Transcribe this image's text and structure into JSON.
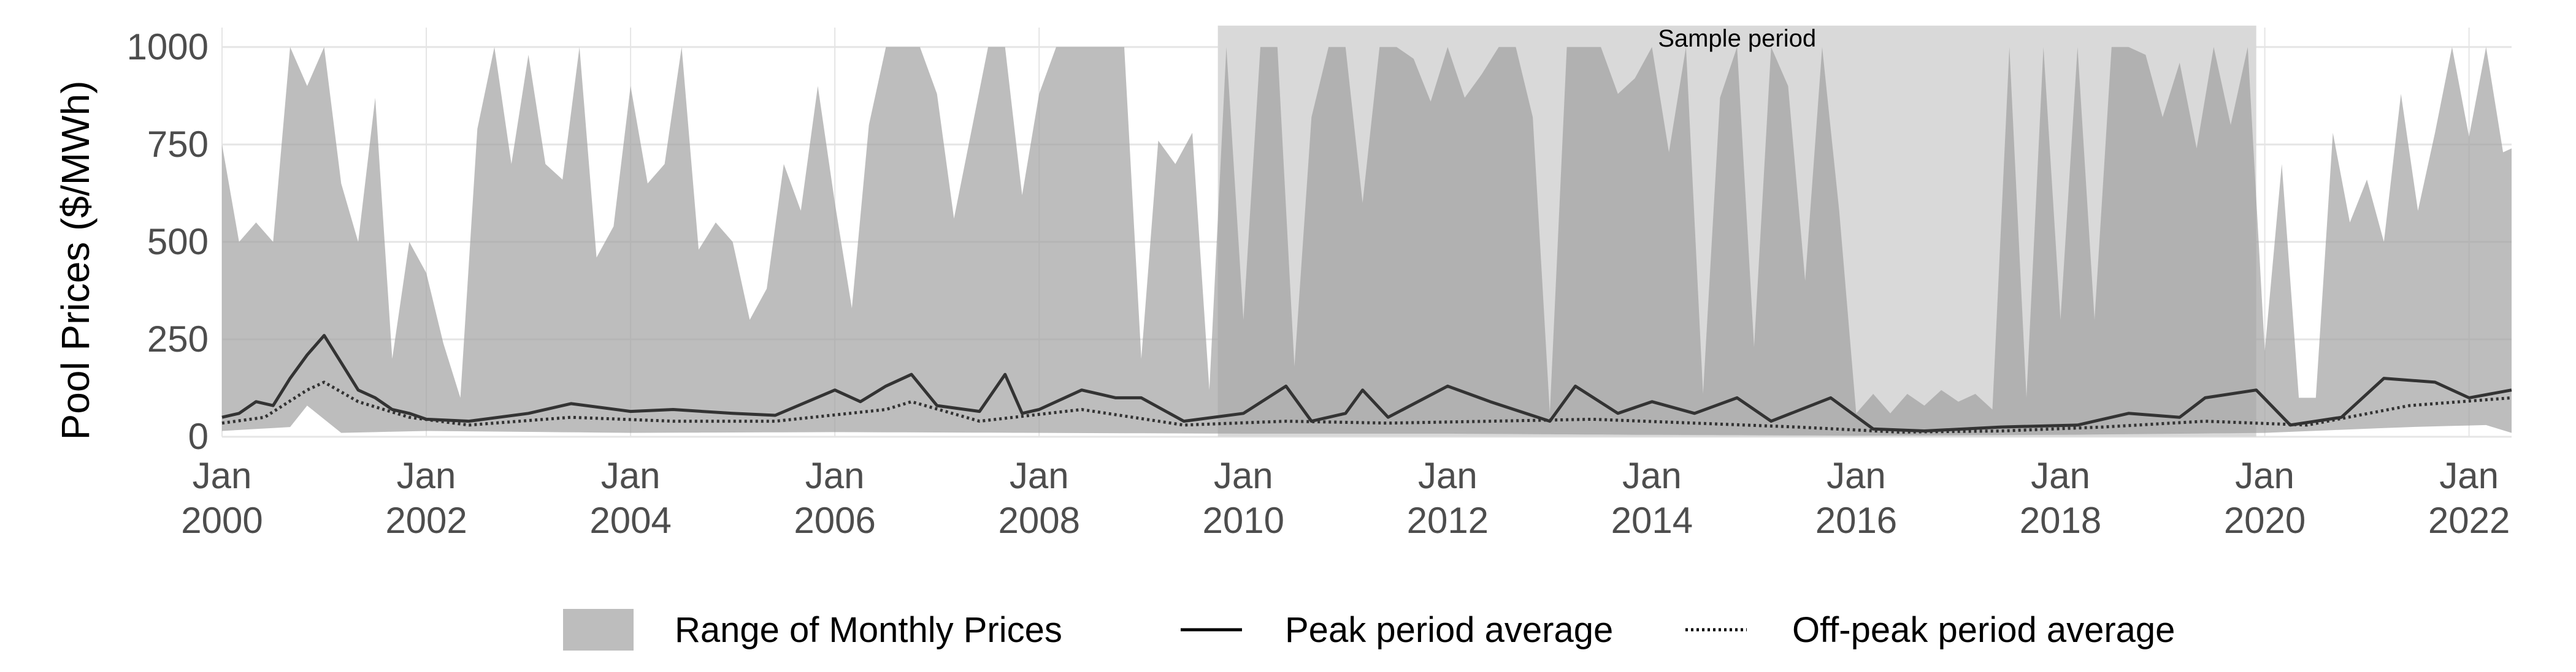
{
  "chart_data": {
    "type": "area",
    "title": "",
    "xlabel": "",
    "ylabel": "Pool Prices ($/MWh)",
    "ylim": [
      0,
      1050
    ],
    "yticks": [
      0,
      250,
      500,
      750,
      1000
    ],
    "xlim": [
      "2000-01",
      "2022-06"
    ],
    "xticks": [
      {
        "date": "2000-01",
        "month": "Jan",
        "year": "2000"
      },
      {
        "date": "2002-01",
        "month": "Jan",
        "year": "2002"
      },
      {
        "date": "2004-01",
        "month": "Jan",
        "year": "2004"
      },
      {
        "date": "2006-01",
        "month": "Jan",
        "year": "2006"
      },
      {
        "date": "2008-01",
        "month": "Jan",
        "year": "2008"
      },
      {
        "date": "2010-01",
        "month": "Jan",
        "year": "2010"
      },
      {
        "date": "2012-01",
        "month": "Jan",
        "year": "2012"
      },
      {
        "date": "2014-01",
        "month": "Jan",
        "year": "2014"
      },
      {
        "date": "2016-01",
        "month": "Jan",
        "year": "2016"
      },
      {
        "date": "2018-01",
        "month": "Jan",
        "year": "2018"
      },
      {
        "date": "2020-01",
        "month": "Jan",
        "year": "2020"
      },
      {
        "date": "2022-01",
        "month": "Jan",
        "year": "2022"
      }
    ],
    "grid": true,
    "legend_position": "bottom",
    "annotation": {
      "label": "Sample period",
      "start": "2009-10",
      "end": "2019-12",
      "color": "#d9d9d9"
    },
    "colors": {
      "range_fill": "#9e9e9e",
      "peak_line": "#333333",
      "offpeak_line": "#333333",
      "grid": "#e5e5e5"
    },
    "range_max_key": [
      [
        "2000-01",
        750
      ],
      [
        "2000-03",
        500
      ],
      [
        "2000-05",
        550
      ],
      [
        "2000-07",
        500
      ],
      [
        "2000-09",
        1000
      ],
      [
        "2000-11",
        900
      ],
      [
        "2001-01",
        1000
      ],
      [
        "2001-03",
        650
      ],
      [
        "2001-05",
        500
      ],
      [
        "2001-07",
        870
      ],
      [
        "2001-09",
        200
      ],
      [
        "2001-11",
        500
      ],
      [
        "2002-01",
        420
      ],
      [
        "2002-03",
        240
      ],
      [
        "2002-05",
        100
      ],
      [
        "2002-07",
        790
      ],
      [
        "2002-09",
        1000
      ],
      [
        "2002-11",
        700
      ],
      [
        "2003-01",
        980
      ],
      [
        "2003-03",
        700
      ],
      [
        "2003-05",
        660
      ],
      [
        "2003-07",
        1000
      ],
      [
        "2003-09",
        460
      ],
      [
        "2003-11",
        540
      ],
      [
        "2004-01",
        900
      ],
      [
        "2004-03",
        650
      ],
      [
        "2004-05",
        700
      ],
      [
        "2004-07",
        1000
      ],
      [
        "2004-09",
        480
      ],
      [
        "2004-11",
        550
      ],
      [
        "2005-01",
        500
      ],
      [
        "2005-03",
        300
      ],
      [
        "2005-05",
        380
      ],
      [
        "2005-07",
        700
      ],
      [
        "2005-09",
        580
      ],
      [
        "2005-11",
        900
      ],
      [
        "2006-01",
        600
      ],
      [
        "2006-03",
        330
      ],
      [
        "2006-05",
        800
      ],
      [
        "2006-07",
        1000
      ],
      [
        "2006-09",
        1000
      ],
      [
        "2006-11",
        1000
      ],
      [
        "2007-01",
        880
      ],
      [
        "2007-03",
        560
      ],
      [
        "2007-05",
        780
      ],
      [
        "2007-07",
        1000
      ],
      [
        "2007-09",
        1000
      ],
      [
        "2007-11",
        620
      ],
      [
        "2008-01",
        880
      ],
      [
        "2008-03",
        1000
      ],
      [
        "2008-05",
        1000
      ],
      [
        "2008-07",
        1000
      ],
      [
        "2008-09",
        1000
      ],
      [
        "2008-11",
        1000
      ],
      [
        "2009-01",
        200
      ],
      [
        "2009-03",
        760
      ],
      [
        "2009-05",
        700
      ],
      [
        "2009-07",
        780
      ],
      [
        "2009-09",
        120
      ],
      [
        "2009-11",
        1000
      ],
      [
        "2010-01",
        300
      ],
      [
        "2010-03",
        1000
      ],
      [
        "2010-05",
        1000
      ],
      [
        "2010-07",
        180
      ],
      [
        "2010-09",
        820
      ],
      [
        "2010-11",
        1000
      ],
      [
        "2011-01",
        1000
      ],
      [
        "2011-03",
        600
      ],
      [
        "2011-05",
        1000
      ],
      [
        "2011-07",
        1000
      ],
      [
        "2011-09",
        970
      ],
      [
        "2011-11",
        860
      ],
      [
        "2012-01",
        1000
      ],
      [
        "2012-03",
        870
      ],
      [
        "2012-05",
        930
      ],
      [
        "2012-07",
        1000
      ],
      [
        "2012-09",
        1000
      ],
      [
        "2012-11",
        820
      ],
      [
        "2013-01",
        60
      ],
      [
        "2013-03",
        1000
      ],
      [
        "2013-05",
        1000
      ],
      [
        "2013-07",
        1000
      ],
      [
        "2013-09",
        880
      ],
      [
        "2013-11",
        920
      ],
      [
        "2014-01",
        1000
      ],
      [
        "2014-03",
        730
      ],
      [
        "2014-05",
        1000
      ],
      [
        "2014-07",
        110
      ],
      [
        "2014-09",
        870
      ],
      [
        "2014-11",
        1000
      ],
      [
        "2015-01",
        230
      ],
      [
        "2015-03",
        1000
      ],
      [
        "2015-05",
        900
      ],
      [
        "2015-07",
        400
      ],
      [
        "2015-09",
        1000
      ],
      [
        "2015-11",
        580
      ],
      [
        "2016-01",
        60
      ],
      [
        "2016-03",
        110
      ],
      [
        "2016-05",
        60
      ],
      [
        "2016-07",
        110
      ],
      [
        "2016-09",
        80
      ],
      [
        "2016-11",
        120
      ],
      [
        "2017-01",
        90
      ],
      [
        "2017-03",
        110
      ],
      [
        "2017-05",
        70
      ],
      [
        "2017-07",
        1000
      ],
      [
        "2017-09",
        100
      ],
      [
        "2017-11",
        1000
      ],
      [
        "2018-01",
        300
      ],
      [
        "2018-03",
        1000
      ],
      [
        "2018-05",
        300
      ],
      [
        "2018-07",
        1000
      ],
      [
        "2018-09",
        1000
      ],
      [
        "2018-11",
        980
      ],
      [
        "2019-01",
        820
      ],
      [
        "2019-03",
        960
      ],
      [
        "2019-05",
        740
      ],
      [
        "2019-07",
        1000
      ],
      [
        "2019-09",
        800
      ],
      [
        "2019-11",
        1000
      ],
      [
        "2020-01",
        220
      ],
      [
        "2020-03",
        700
      ],
      [
        "2020-05",
        100
      ],
      [
        "2020-07",
        100
      ],
      [
        "2020-09",
        780
      ],
      [
        "2020-11",
        550
      ],
      [
        "2021-01",
        660
      ],
      [
        "2021-03",
        500
      ],
      [
        "2021-05",
        880
      ],
      [
        "2021-07",
        580
      ],
      [
        "2021-09",
        780
      ],
      [
        "2021-11",
        1000
      ],
      [
        "2022-01",
        770
      ],
      [
        "2022-03",
        1000
      ],
      [
        "2022-05",
        730
      ],
      [
        "2022-06",
        740
      ]
    ],
    "range_min_key": [
      [
        "2000-01",
        15
      ],
      [
        "2000-09",
        25
      ],
      [
        "2000-11",
        80
      ],
      [
        "2001-03",
        10
      ],
      [
        "2002-01",
        15
      ],
      [
        "2004-01",
        10
      ],
      [
        "2006-01",
        12
      ],
      [
        "2008-01",
        10
      ],
      [
        "2010-01",
        8
      ],
      [
        "2012-01",
        8
      ],
      [
        "2014-01",
        5
      ],
      [
        "2016-01",
        3
      ],
      [
        "2018-01",
        5
      ],
      [
        "2020-01",
        10
      ],
      [
        "2021-06",
        25
      ],
      [
        "2022-03",
        30
      ],
      [
        "2022-06",
        10
      ]
    ],
    "series": [
      {
        "name": "Peak period average",
        "style": "solid",
        "points": [
          [
            "2000-01",
            50
          ],
          [
            "2000-03",
            60
          ],
          [
            "2000-05",
            90
          ],
          [
            "2000-07",
            80
          ],
          [
            "2000-09",
            150
          ],
          [
            "2000-11",
            210
          ],
          [
            "2001-01",
            260
          ],
          [
            "2001-03",
            190
          ],
          [
            "2001-05",
            120
          ],
          [
            "2001-07",
            100
          ],
          [
            "2001-09",
            70
          ],
          [
            "2001-11",
            60
          ],
          [
            "2002-01",
            45
          ],
          [
            "2002-06",
            40
          ],
          [
            "2003-01",
            60
          ],
          [
            "2003-06",
            85
          ],
          [
            "2004-01",
            65
          ],
          [
            "2004-06",
            70
          ],
          [
            "2005-01",
            60
          ],
          [
            "2005-06",
            55
          ],
          [
            "2006-01",
            120
          ],
          [
            "2006-04",
            90
          ],
          [
            "2006-07",
            130
          ],
          [
            "2006-10",
            160
          ],
          [
            "2007-01",
            80
          ],
          [
            "2007-06",
            65
          ],
          [
            "2007-09",
            160
          ],
          [
            "2007-11",
            60
          ],
          [
            "2008-01",
            70
          ],
          [
            "2008-06",
            120
          ],
          [
            "2008-10",
            100
          ],
          [
            "2009-01",
            100
          ],
          [
            "2009-06",
            40
          ],
          [
            "2010-01",
            60
          ],
          [
            "2010-06",
            130
          ],
          [
            "2010-09",
            40
          ],
          [
            "2011-01",
            60
          ],
          [
            "2011-03",
            120
          ],
          [
            "2011-06",
            50
          ],
          [
            "2012-01",
            130
          ],
          [
            "2012-06",
            90
          ],
          [
            "2013-01",
            40
          ],
          [
            "2013-04",
            130
          ],
          [
            "2013-09",
            60
          ],
          [
            "2014-01",
            90
          ],
          [
            "2014-06",
            60
          ],
          [
            "2014-11",
            100
          ],
          [
            "2015-03",
            40
          ],
          [
            "2015-10",
            100
          ],
          [
            "2016-03",
            20
          ],
          [
            "2016-09",
            15
          ],
          [
            "2017-06",
            25
          ],
          [
            "2018-03",
            30
          ],
          [
            "2018-09",
            60
          ],
          [
            "2019-03",
            50
          ],
          [
            "2019-06",
            100
          ],
          [
            "2019-12",
            120
          ],
          [
            "2020-04",
            30
          ],
          [
            "2020-10",
            50
          ],
          [
            "2021-03",
            150
          ],
          [
            "2021-09",
            140
          ],
          [
            "2022-01",
            100
          ],
          [
            "2022-06",
            120
          ]
        ]
      },
      {
        "name": "Off-peak period average",
        "style": "dotted",
        "points": [
          [
            "2000-01",
            35
          ],
          [
            "2000-06",
            50
          ],
          [
            "2000-11",
            120
          ],
          [
            "2001-01",
            140
          ],
          [
            "2001-05",
            90
          ],
          [
            "2001-11",
            50
          ],
          [
            "2002-06",
            30
          ],
          [
            "2003-06",
            50
          ],
          [
            "2004-06",
            40
          ],
          [
            "2005-06",
            40
          ],
          [
            "2006-07",
            70
          ],
          [
            "2006-10",
            90
          ],
          [
            "2007-06",
            40
          ],
          [
            "2008-06",
            70
          ],
          [
            "2009-06",
            30
          ],
          [
            "2010-06",
            40
          ],
          [
            "2011-06",
            35
          ],
          [
            "2012-06",
            40
          ],
          [
            "2013-06",
            45
          ],
          [
            "2014-06",
            35
          ],
          [
            "2015-06",
            25
          ],
          [
            "2016-06",
            12
          ],
          [
            "2017-06",
            15
          ],
          [
            "2018-06",
            25
          ],
          [
            "2019-06",
            40
          ],
          [
            "2020-06",
            30
          ],
          [
            "2021-06",
            80
          ],
          [
            "2022-06",
            100
          ]
        ]
      }
    ],
    "legend": [
      {
        "label": "Range of Monthly Prices",
        "kind": "fill"
      },
      {
        "label": "Peak period average",
        "kind": "solid"
      },
      {
        "label": "Off-peak period average",
        "kind": "dotted"
      }
    ]
  }
}
